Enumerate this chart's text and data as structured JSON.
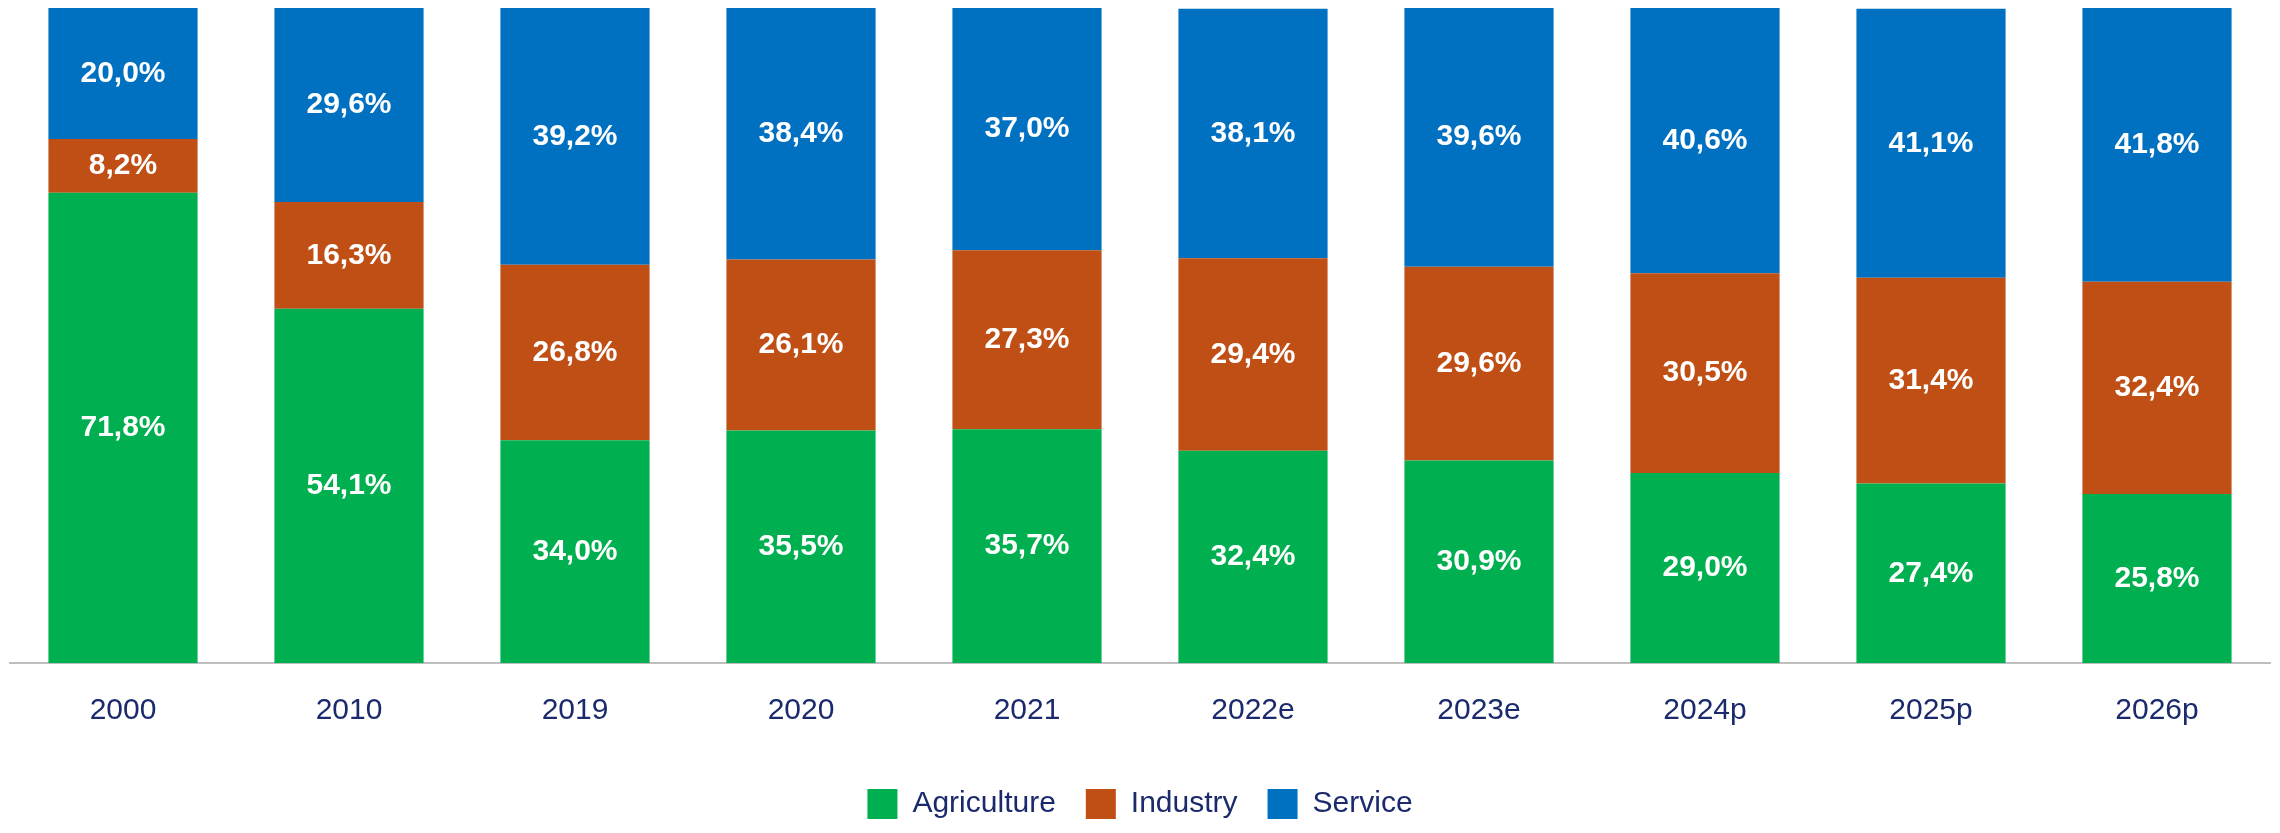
{
  "chart_data": {
    "type": "bar",
    "stacked": true,
    "categories": [
      "2000",
      "2010",
      "2019",
      "2020",
      "2021",
      "2022e",
      "2023e",
      "2024p",
      "2025p",
      "2026p"
    ],
    "series": [
      {
        "name": "Agriculture",
        "color": "#00b050",
        "values": [
          71.8,
          54.1,
          34.0,
          35.5,
          35.7,
          32.4,
          30.9,
          29.0,
          27.4,
          25.8
        ],
        "value_labels": [
          "71,8%",
          "54,1%",
          "34,0%",
          "35,5%",
          "35,7%",
          "32,4%",
          "30,9%",
          "29,0%",
          "27,4%",
          "25,8%"
        ]
      },
      {
        "name": "Industry",
        "color": "#c04f15",
        "values": [
          8.2,
          16.3,
          26.8,
          26.1,
          27.3,
          29.4,
          29.6,
          30.5,
          31.4,
          32.4
        ],
        "value_labels": [
          "8,2%",
          "16,3%",
          "26,8%",
          "26,1%",
          "27,3%",
          "29,4%",
          "29,6%",
          "30,5%",
          "31,4%",
          "32,4%"
        ]
      },
      {
        "name": "Service",
        "color": "#0070c0",
        "values": [
          20.0,
          29.6,
          39.2,
          38.4,
          37.0,
          38.1,
          39.6,
          40.6,
          41.1,
          41.8
        ],
        "value_labels": [
          "20,0%",
          "29,6%",
          "39,2%",
          "38,4%",
          "37,0%",
          "38,1%",
          "39,6%",
          "40,6%",
          "41,1%",
          "41,8%"
        ]
      }
    ],
    "ylim": [
      0,
      100
    ],
    "tick_labels": "x",
    "grid": false,
    "legend": "bottom"
  }
}
